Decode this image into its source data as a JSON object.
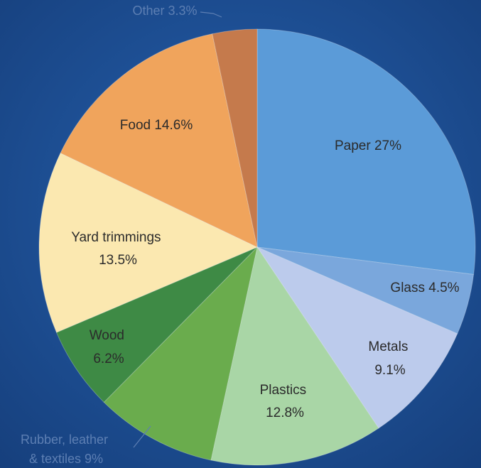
{
  "colors": {
    "background": "#1d4f95",
    "background_dark": "#153d78"
  },
  "chart_data": {
    "type": "pie",
    "start": "12 o'clock",
    "direction": "clockwise",
    "slices": [
      {
        "name": "Paper",
        "value": 27,
        "label": "Paper 27%",
        "color": "#5b9bd8",
        "label_placement": "inside"
      },
      {
        "name": "Glass",
        "value": 4.5,
        "label": "Glass 4.5%",
        "color": "#7aa7dc",
        "label_placement": "inside"
      },
      {
        "name": "Metals",
        "value": 9.1,
        "label": "Metals 9.1%",
        "color": "#bccbec",
        "label_placement": "inside"
      },
      {
        "name": "Plastics",
        "value": 12.8,
        "label": "Plastics 12.8%",
        "color": "#a9d6a6",
        "label_placement": "inside"
      },
      {
        "name": "Rubber, leather & textiles",
        "value": 9,
        "label": "Rubber, leather & textiles 9%",
        "color": "#6aac4d",
        "label_placement": "outside"
      },
      {
        "name": "Wood",
        "value": 6.2,
        "label": "Wood 6.2%",
        "color": "#3e8a45",
        "label_placement": "inside"
      },
      {
        "name": "Yard trimmings",
        "value": 13.5,
        "label": "Yard trimmings 13.5%",
        "color": "#fbe8b0",
        "label_placement": "inside"
      },
      {
        "name": "Food",
        "value": 14.6,
        "label": "Food 14.6%",
        "color": "#f0a45c",
        "label_placement": "inside"
      },
      {
        "name": "Other",
        "value": 3.3,
        "label": "Other 3.3%",
        "color": "#c57a4c",
        "label_placement": "outside"
      }
    ]
  },
  "labels": {
    "paper": "Paper 27%",
    "glass": "Glass 4.5%",
    "metals_line1": "Metals",
    "metals_line2": "9.1%",
    "plastics_line1": "Plastics",
    "plastics_line2": "12.8%",
    "rubber_line1": "Rubber, leather",
    "rubber_line2": "& textiles 9%",
    "wood_line1": "Wood",
    "wood_line2": "6.2%",
    "yard_line1": "Yard trimmings",
    "yard_line2": "13.5%",
    "food": "Food 14.6%",
    "other": "Other 3.3%"
  }
}
